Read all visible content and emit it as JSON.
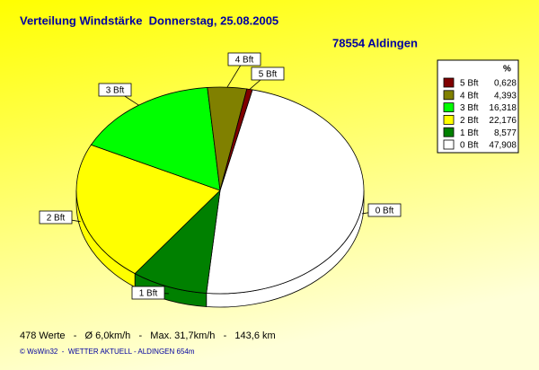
{
  "chart_data": {
    "type": "pie",
    "title": "Verteilung Windstärke  Donnerstag, 25.08.2005",
    "subtitle": "78554 Aldingen",
    "legend_header": "%",
    "categories": [
      "5 Bft",
      "4 Bft",
      "3 Bft",
      "2 Bft",
      "1 Bft",
      "0 Bft"
    ],
    "values": [
      0.628,
      4.393,
      16.318,
      22.176,
      8.577,
      47.908
    ],
    "value_labels": [
      "0,628",
      "4,393",
      "16,318",
      "22,176",
      "8,577",
      "47,908"
    ],
    "colors": [
      "#800000",
      "#808000",
      "#00ff00",
      "#ffff00",
      "#008000",
      "#ffffff"
    ],
    "footer": "478 Werte   -   Ø 6,0km/h   -   Max. 31,7km/h   -   143,6 km",
    "credit": "© WsWin32  -  WETTER AKTUELL - ALDINGEN 654m"
  }
}
